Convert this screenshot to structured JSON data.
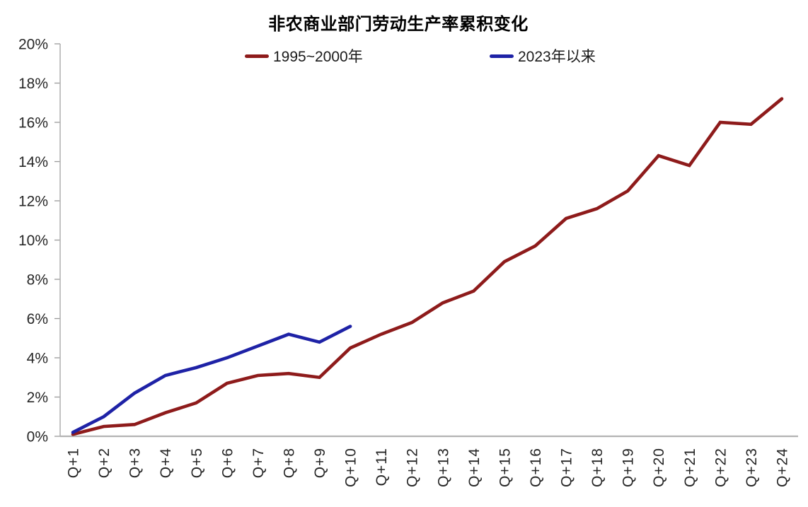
{
  "chart_data": {
    "type": "line",
    "title": "非农商业部门劳动生产率累积变化",
    "categories": [
      "Q+1",
      "Q+2",
      "Q+3",
      "Q+4",
      "Q+5",
      "Q+6",
      "Q+7",
      "Q+8",
      "Q+9",
      "Q+10",
      "Q+11",
      "Q+12",
      "Q+13",
      "Q+14",
      "Q+15",
      "Q+16",
      "Q+17",
      "Q+18",
      "Q+19",
      "Q+20",
      "Q+21",
      "Q+22",
      "Q+23",
      "Q+24"
    ],
    "series": [
      {
        "name": "1995~2000年",
        "color": "#8e1b1b",
        "values": [
          0.1,
          0.5,
          0.6,
          1.2,
          1.7,
          2.7,
          3.1,
          3.2,
          3.0,
          4.5,
          5.2,
          5.8,
          6.8,
          7.4,
          8.9,
          9.7,
          11.1,
          11.6,
          12.5,
          14.3,
          13.8,
          16.0,
          15.9,
          17.2
        ]
      },
      {
        "name": "2023年以来",
        "color": "#1e22a6",
        "values": [
          0.2,
          1.0,
          2.2,
          3.1,
          3.5,
          4.0,
          4.6,
          5.2,
          4.8,
          5.6
        ]
      }
    ],
    "xlabel": "",
    "ylabel": "",
    "ylim": [
      0,
      20
    ],
    "ytick_step": 2,
    "ytick_suffix": "%",
    "grid": false,
    "legend_position": "top",
    "axis_color": "#b3b3b3",
    "tick_color": "#999999",
    "text_color": "#262626"
  }
}
